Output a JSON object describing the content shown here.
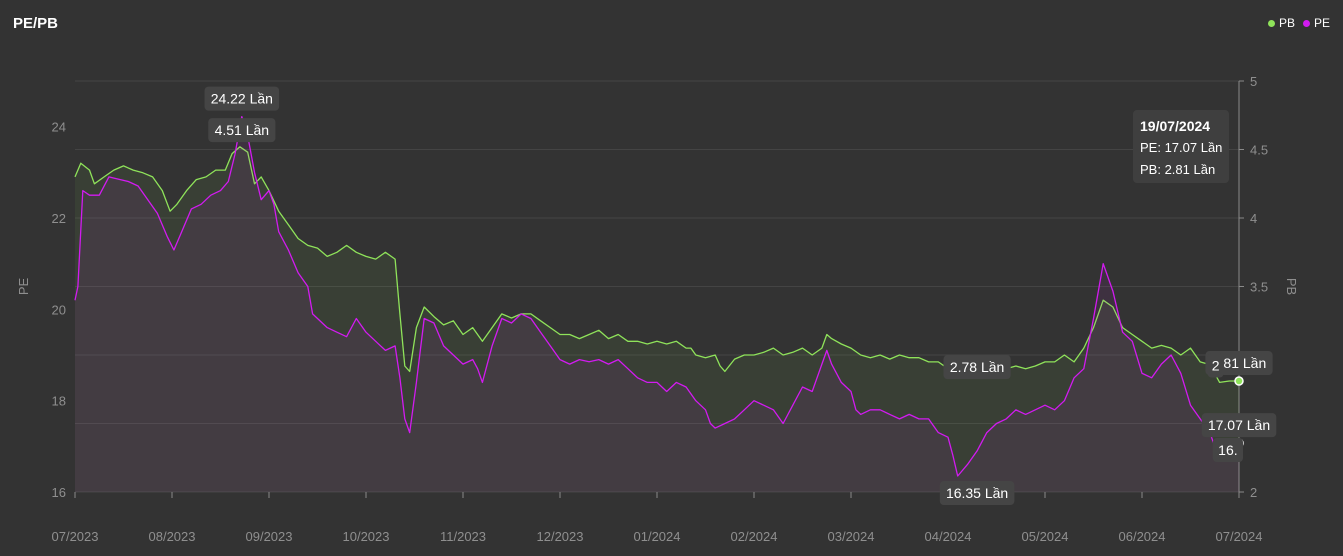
{
  "title": "PE/PB",
  "legend": [
    {
      "name": "PB",
      "color": "#8fe35a"
    },
    {
      "name": "PE",
      "color": "#d21bf0"
    }
  ],
  "tooltip": {
    "date": "19/07/2024",
    "pe_line": "PE: 17.07 Lần",
    "pb_line": "PB: 2.81 Lần"
  },
  "chart_data": {
    "type": "line",
    "title": "PE/PB",
    "x_tick_labels": [
      "07/2023",
      "08/2023",
      "09/2023",
      "10/2023",
      "11/2023",
      "12/2023",
      "01/2024",
      "02/2024",
      "03/2024",
      "04/2024",
      "05/2024",
      "06/2024",
      "07/2024"
    ],
    "y_left": {
      "label": "PE",
      "range": [
        16,
        25
      ],
      "ticks": [
        16,
        18,
        20,
        22,
        24
      ]
    },
    "y_right": {
      "label": "PB",
      "range": [
        2,
        5
      ],
      "ticks": [
        2,
        2.5,
        3,
        3.5,
        4,
        4.5,
        5
      ],
      "tick_labels": [
        "2",
        "",
        "3",
        "3.5",
        "4",
        "4.5",
        "5"
      ]
    },
    "grid": true,
    "legend_position": "top-right",
    "series": [
      {
        "name": "PB",
        "axis": "right",
        "color": "#8fe35a",
        "points": [
          [
            0,
            4.3
          ],
          [
            0.06,
            4.4
          ],
          [
            0.15,
            4.35
          ],
          [
            0.2,
            4.25
          ],
          [
            0.3,
            4.3
          ],
          [
            0.4,
            4.35
          ],
          [
            0.5,
            4.38
          ],
          [
            0.6,
            4.35
          ],
          [
            0.7,
            4.33
          ],
          [
            0.8,
            4.3
          ],
          [
            0.9,
            4.2
          ],
          [
            0.98,
            4.05
          ],
          [
            1.05,
            4.1
          ],
          [
            1.15,
            4.2
          ],
          [
            1.25,
            4.28
          ],
          [
            1.35,
            4.3
          ],
          [
            1.45,
            4.35
          ],
          [
            1.55,
            4.35
          ],
          [
            1.62,
            4.47
          ],
          [
            1.7,
            4.52
          ],
          [
            1.78,
            4.48
          ],
          [
            1.85,
            4.25
          ],
          [
            1.92,
            4.3
          ],
          [
            2.0,
            4.2
          ],
          [
            2.1,
            4.05
          ],
          [
            2.2,
            3.95
          ],
          [
            2.3,
            3.85
          ],
          [
            2.4,
            3.8
          ],
          [
            2.5,
            3.78
          ],
          [
            2.6,
            3.72
          ],
          [
            2.7,
            3.75
          ],
          [
            2.8,
            3.8
          ],
          [
            2.9,
            3.75
          ],
          [
            3.0,
            3.72
          ],
          [
            3.1,
            3.7
          ],
          [
            3.2,
            3.75
          ],
          [
            3.3,
            3.7
          ],
          [
            3.35,
            3.3
          ],
          [
            3.4,
            2.92
          ],
          [
            3.45,
            2.88
          ],
          [
            3.52,
            3.2
          ],
          [
            3.6,
            3.35
          ],
          [
            3.7,
            3.28
          ],
          [
            3.8,
            3.22
          ],
          [
            3.9,
            3.25
          ],
          [
            4.0,
            3.15
          ],
          [
            4.1,
            3.2
          ],
          [
            4.2,
            3.1
          ],
          [
            4.3,
            3.2
          ],
          [
            4.4,
            3.3
          ],
          [
            4.5,
            3.27
          ],
          [
            4.6,
            3.3
          ],
          [
            4.7,
            3.3
          ],
          [
            4.8,
            3.25
          ],
          [
            4.9,
            3.2
          ],
          [
            5.0,
            3.15
          ],
          [
            5.1,
            3.15
          ],
          [
            5.2,
            3.12
          ],
          [
            5.3,
            3.15
          ],
          [
            5.4,
            3.18
          ],
          [
            5.5,
            3.12
          ],
          [
            5.6,
            3.15
          ],
          [
            5.7,
            3.1
          ],
          [
            5.8,
            3.1
          ],
          [
            5.9,
            3.08
          ],
          [
            6.0,
            3.1
          ],
          [
            6.1,
            3.08
          ],
          [
            6.2,
            3.1
          ],
          [
            6.3,
            3.05
          ],
          [
            6.35,
            3.05
          ],
          [
            6.4,
            3.0
          ],
          [
            6.5,
            2.98
          ],
          [
            6.6,
            3.0
          ],
          [
            6.65,
            2.92
          ],
          [
            6.7,
            2.88
          ],
          [
            6.8,
            2.97
          ],
          [
            6.9,
            3.0
          ],
          [
            7.0,
            3.0
          ],
          [
            7.1,
            3.02
          ],
          [
            7.2,
            3.05
          ],
          [
            7.3,
            3.0
          ],
          [
            7.4,
            3.02
          ],
          [
            7.5,
            3.05
          ],
          [
            7.6,
            3.0
          ],
          [
            7.7,
            3.05
          ],
          [
            7.75,
            3.15
          ],
          [
            7.8,
            3.12
          ],
          [
            7.9,
            3.08
          ],
          [
            8.0,
            3.05
          ],
          [
            8.1,
            3.0
          ],
          [
            8.2,
            2.98
          ],
          [
            8.3,
            3.0
          ],
          [
            8.4,
            2.97
          ],
          [
            8.5,
            3.0
          ],
          [
            8.6,
            2.98
          ],
          [
            8.7,
            2.98
          ],
          [
            8.8,
            2.95
          ],
          [
            8.9,
            2.95
          ],
          [
            9.0,
            2.9
          ],
          [
            9.1,
            2.85
          ],
          [
            9.2,
            2.85
          ],
          [
            9.3,
            2.95
          ],
          [
            9.4,
            2.9
          ],
          [
            9.5,
            2.92
          ],
          [
            9.6,
            2.9
          ],
          [
            9.7,
            2.92
          ],
          [
            9.8,
            2.9
          ],
          [
            9.9,
            2.92
          ],
          [
            10.0,
            2.95
          ],
          [
            10.1,
            2.95
          ],
          [
            10.2,
            3.0
          ],
          [
            10.3,
            2.95
          ],
          [
            10.4,
            3.05
          ],
          [
            10.5,
            3.2
          ],
          [
            10.6,
            3.4
          ],
          [
            10.7,
            3.35
          ],
          [
            10.8,
            3.2
          ],
          [
            10.9,
            3.15
          ],
          [
            11.0,
            3.1
          ],
          [
            11.1,
            3.05
          ],
          [
            11.2,
            3.07
          ],
          [
            11.3,
            3.05
          ],
          [
            11.4,
            3.0
          ],
          [
            11.5,
            3.05
          ],
          [
            11.6,
            2.95
          ],
          [
            11.7,
            2.93
          ],
          [
            11.8,
            2.8
          ],
          [
            11.9,
            2.81
          ],
          [
            12.0,
            2.81
          ]
        ]
      },
      {
        "name": "PE",
        "axis": "left",
        "color": "#d21bf0",
        "points": [
          [
            0,
            20.2
          ],
          [
            0.03,
            20.5
          ],
          [
            0.08,
            22.6
          ],
          [
            0.15,
            22.5
          ],
          [
            0.25,
            22.5
          ],
          [
            0.35,
            22.9
          ],
          [
            0.45,
            22.85
          ],
          [
            0.55,
            22.8
          ],
          [
            0.65,
            22.7
          ],
          [
            0.75,
            22.4
          ],
          [
            0.85,
            22.1
          ],
          [
            0.95,
            21.6
          ],
          [
            1.02,
            21.3
          ],
          [
            1.1,
            21.7
          ],
          [
            1.2,
            22.2
          ],
          [
            1.3,
            22.3
          ],
          [
            1.4,
            22.5
          ],
          [
            1.5,
            22.6
          ],
          [
            1.58,
            22.8
          ],
          [
            1.65,
            23.4
          ],
          [
            1.72,
            24.22
          ],
          [
            1.78,
            23.8
          ],
          [
            1.85,
            23.0
          ],
          [
            1.92,
            22.4
          ],
          [
            2.0,
            22.6
          ],
          [
            2.05,
            22.3
          ],
          [
            2.1,
            21.7
          ],
          [
            2.2,
            21.3
          ],
          [
            2.3,
            20.8
          ],
          [
            2.4,
            20.5
          ],
          [
            2.45,
            19.9
          ],
          [
            2.5,
            19.8
          ],
          [
            2.6,
            19.6
          ],
          [
            2.7,
            19.5
          ],
          [
            2.8,
            19.4
          ],
          [
            2.9,
            19.8
          ],
          [
            3.0,
            19.5
          ],
          [
            3.1,
            19.3
          ],
          [
            3.2,
            19.1
          ],
          [
            3.3,
            19.2
          ],
          [
            3.35,
            18.5
          ],
          [
            3.4,
            17.6
          ],
          [
            3.45,
            17.3
          ],
          [
            3.52,
            18.4
          ],
          [
            3.6,
            19.8
          ],
          [
            3.7,
            19.7
          ],
          [
            3.8,
            19.2
          ],
          [
            3.9,
            19.0
          ],
          [
            4.0,
            18.8
          ],
          [
            4.1,
            18.9
          ],
          [
            4.15,
            18.7
          ],
          [
            4.2,
            18.4
          ],
          [
            4.3,
            19.2
          ],
          [
            4.4,
            19.8
          ],
          [
            4.5,
            19.7
          ],
          [
            4.6,
            19.9
          ],
          [
            4.7,
            19.8
          ],
          [
            4.8,
            19.5
          ],
          [
            4.9,
            19.2
          ],
          [
            5.0,
            18.9
          ],
          [
            5.1,
            18.8
          ],
          [
            5.2,
            18.9
          ],
          [
            5.3,
            18.85
          ],
          [
            5.4,
            18.9
          ],
          [
            5.5,
            18.8
          ],
          [
            5.6,
            18.9
          ],
          [
            5.7,
            18.7
          ],
          [
            5.8,
            18.5
          ],
          [
            5.9,
            18.4
          ],
          [
            6.0,
            18.4
          ],
          [
            6.1,
            18.2
          ],
          [
            6.2,
            18.4
          ],
          [
            6.3,
            18.3
          ],
          [
            6.4,
            18.0
          ],
          [
            6.5,
            17.8
          ],
          [
            6.55,
            17.5
          ],
          [
            6.6,
            17.4
          ],
          [
            6.7,
            17.5
          ],
          [
            6.8,
            17.6
          ],
          [
            6.9,
            17.8
          ],
          [
            7.0,
            18.0
          ],
          [
            7.1,
            17.9
          ],
          [
            7.2,
            17.8
          ],
          [
            7.3,
            17.5
          ],
          [
            7.4,
            17.9
          ],
          [
            7.5,
            18.3
          ],
          [
            7.6,
            18.2
          ],
          [
            7.7,
            18.8
          ],
          [
            7.75,
            19.1
          ],
          [
            7.8,
            18.8
          ],
          [
            7.9,
            18.4
          ],
          [
            8.0,
            18.2
          ],
          [
            8.05,
            17.8
          ],
          [
            8.1,
            17.7
          ],
          [
            8.2,
            17.8
          ],
          [
            8.3,
            17.8
          ],
          [
            8.4,
            17.7
          ],
          [
            8.5,
            17.6
          ],
          [
            8.6,
            17.7
          ],
          [
            8.7,
            17.6
          ],
          [
            8.8,
            17.6
          ],
          [
            8.9,
            17.3
          ],
          [
            9.0,
            17.2
          ],
          [
            9.05,
            16.8
          ],
          [
            9.1,
            16.35
          ],
          [
            9.2,
            16.6
          ],
          [
            9.3,
            16.9
          ],
          [
            9.4,
            17.3
          ],
          [
            9.5,
            17.5
          ],
          [
            9.6,
            17.6
          ],
          [
            9.7,
            17.8
          ],
          [
            9.8,
            17.7
          ],
          [
            9.9,
            17.8
          ],
          [
            10.0,
            17.9
          ],
          [
            10.1,
            17.8
          ],
          [
            10.2,
            18.0
          ],
          [
            10.3,
            18.5
          ],
          [
            10.4,
            18.7
          ],
          [
            10.5,
            19.8
          ],
          [
            10.6,
            21.0
          ],
          [
            10.7,
            20.4
          ],
          [
            10.8,
            19.5
          ],
          [
            10.9,
            19.3
          ],
          [
            11.0,
            18.6
          ],
          [
            11.1,
            18.5
          ],
          [
            11.2,
            18.8
          ],
          [
            11.3,
            19.0
          ],
          [
            11.4,
            18.6
          ],
          [
            11.5,
            17.9
          ],
          [
            11.6,
            17.6
          ],
          [
            11.7,
            17.3
          ],
          [
            11.8,
            16.7
          ],
          [
            11.9,
            17.0
          ],
          [
            12.0,
            17.07
          ]
        ]
      }
    ],
    "annotations": [
      {
        "text": "24.22 Lần",
        "series": "PE",
        "x": 1.72,
        "y": 24.22,
        "placement": "above"
      },
      {
        "text": "4.51 Lần",
        "series": "PB",
        "x": 1.72,
        "y": 4.51,
        "placement": "above"
      },
      {
        "text": "2.78 Lần",
        "series": "PB",
        "x": 9.3,
        "y": 2.78,
        "placement": "above"
      },
      {
        "text": "16.35 Lần",
        "series": "PE",
        "x": 9.3,
        "y": 16.35,
        "placement": "below"
      },
      {
        "text": "2.81 Lần",
        "series": "PB",
        "x": 12.0,
        "y": 2.81,
        "placement": "above"
      },
      {
        "text": "17.07 Lần",
        "series": "PE",
        "x": 12.0,
        "y": 17.07,
        "placement": "above"
      },
      {
        "text": "16.",
        "series": "PE",
        "x": 12.0,
        "y": 16.7,
        "placement": "partially hidden"
      },
      {
        "text": "2",
        "series": "PB",
        "x": 11.8,
        "y": 2.85,
        "placement": "partially hidden"
      }
    ]
  }
}
